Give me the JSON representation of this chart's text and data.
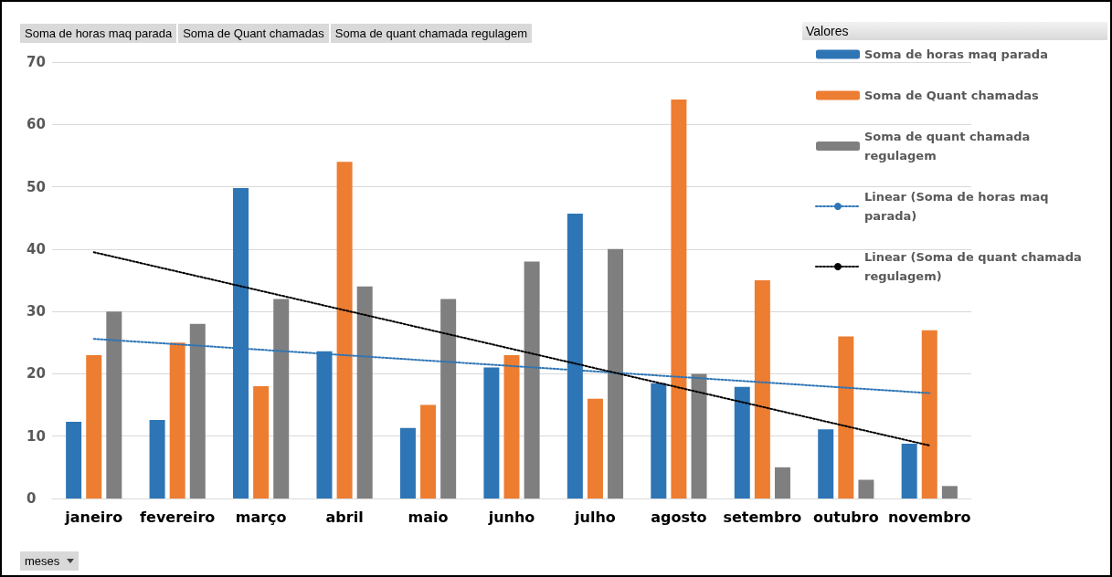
{
  "chart_data": {
    "type": "bar",
    "annotations": [
      "Soma de horas maq parada",
      "Soma de Quant chamadas",
      "Soma de quant chamada regulagem"
    ],
    "xlabel": "meses",
    "legend_title": "Valores",
    "categories": [
      "janeiro",
      "fevereiro",
      "março",
      "abril",
      "maio",
      "junho",
      "julho",
      "agosto",
      "setembro",
      "outubro",
      "novembro"
    ],
    "series": [
      {
        "name": "Soma de horas maq parada",
        "color": "#2e75b6",
        "values": [
          12.3,
          12.6,
          49.8,
          23.6,
          11.3,
          21.0,
          45.7,
          18.5,
          17.9,
          11.1,
          8.8
        ]
      },
      {
        "name": "Soma de Quant chamadas",
        "color": "#ed7d31",
        "values": [
          23,
          25,
          18,
          54,
          15,
          23,
          16,
          64,
          35,
          26,
          27
        ]
      },
      {
        "name": "Soma de quant chamada regulagem",
        "color": "#7f7f7f",
        "values": [
          30,
          28,
          32,
          34,
          32,
          38,
          40,
          20,
          5,
          3,
          2
        ]
      },
      {
        "name": "Linear (Soma de horas maq parada)",
        "type": "line",
        "color": "#2e75b6",
        "line_style": "dotted",
        "marker": "none",
        "x": [
          "janeiro",
          "novembro"
        ],
        "values": [
          25.6,
          16.9
        ]
      },
      {
        "name": "Linear (Soma de quant chamada regulagem)",
        "type": "line",
        "color": "#000000",
        "line_style": "dotted",
        "marker": "none",
        "x": [
          "janeiro",
          "novembro"
        ],
        "values": [
          39.5,
          8.5
        ]
      }
    ],
    "ylim": [
      0,
      70
    ],
    "yticks": [
      0,
      10,
      20,
      30,
      40,
      50,
      60,
      70
    ],
    "grid": "y",
    "legend": "top right"
  }
}
